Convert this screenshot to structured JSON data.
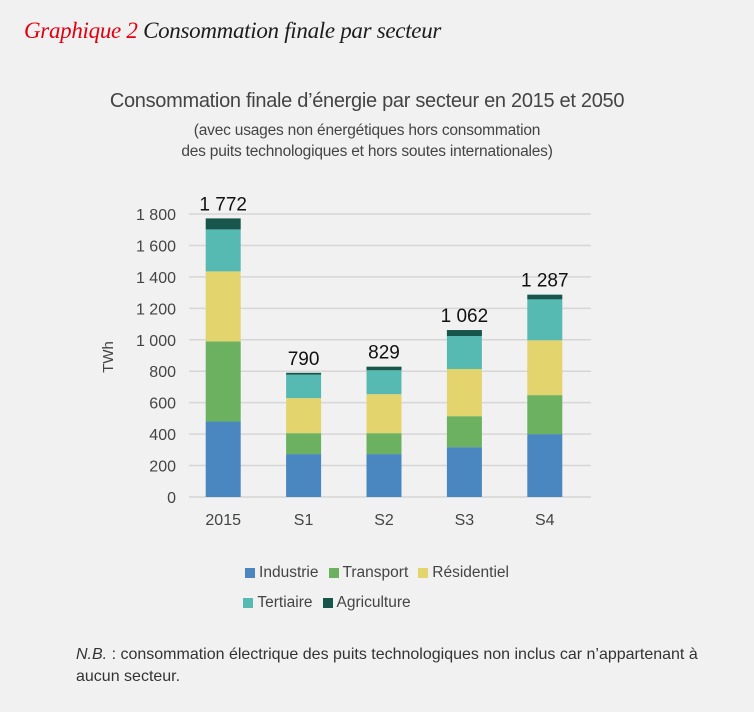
{
  "figure": {
    "label": "Graphique 2",
    "caption": "Consommation finale par secteur",
    "label_color": "#e1000f"
  },
  "note": {
    "prefix": "N.B.",
    "text": " : consommation électrique des puits technologiques non inclus car n’appartenant à aucun secteur."
  },
  "chart_data": {
    "type": "bar",
    "stacked": true,
    "title": "Consommation finale d’énergie par secteur en 2015 et 2050",
    "subtitle_lines": [
      "(avec usages non énergétiques hors consommation",
      "des puits technologiques et hors soutes internationales)"
    ],
    "xlabel": "",
    "ylabel": "TWh",
    "ylim": [
      0,
      1800
    ],
    "yticks": [
      0,
      200,
      400,
      600,
      800,
      1000,
      1200,
      1400,
      1600,
      1800
    ],
    "ytick_labels": [
      "0",
      "200",
      "400",
      "600",
      "800",
      "1 000",
      "1 200",
      "1 400",
      "1 600",
      "1 800"
    ],
    "grid": true,
    "legend_position": "bottom",
    "categories": [
      "2015",
      "S1",
      "S2",
      "S3",
      "S4"
    ],
    "totals": [
      1772,
      790,
      829,
      1062,
      1287
    ],
    "total_labels": [
      "1 772",
      "790",
      "829",
      "1 062",
      "1 287"
    ],
    "series": [
      {
        "name": "Industrie",
        "color": "#4a86c0",
        "values": [
          480,
          273,
          273,
          317,
          400
        ]
      },
      {
        "name": "Transport",
        "color": "#6bb160",
        "values": [
          510,
          133,
          133,
          197,
          248
        ]
      },
      {
        "name": "Résidentiel",
        "color": "#e3d46d",
        "values": [
          445,
          223,
          248,
          300,
          349
        ]
      },
      {
        "name": "Tertiaire",
        "color": "#56bab3",
        "values": [
          267,
          149,
          152,
          210,
          260
        ]
      },
      {
        "name": "Agriculture",
        "color": "#18554a",
        "values": [
          70,
          12,
          23,
          38,
          30
        ]
      }
    ]
  }
}
